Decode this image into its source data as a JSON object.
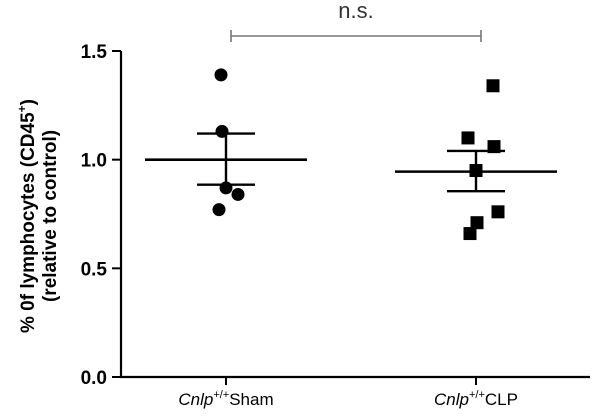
{
  "chart_data": {
    "type": "scatter",
    "ylabel_line1": "% 0f lymphocytes (CD45",
    "ylabel_sup": "+",
    "ylabel_line1_end": ")",
    "ylabel_line2": "(relative to control)",
    "ylim": [
      0,
      1.5
    ],
    "yticks": [
      "0.0",
      "0.5",
      "1.0",
      "1.5"
    ],
    "grid": false,
    "groups": [
      {
        "label_italic": "Cnlp",
        "label_sup": "+/+",
        "label_rest": "Sham",
        "marker": "circle",
        "values": [
          1.39,
          1.13,
          0.87,
          0.84,
          0.77
        ],
        "mean": 1.0,
        "sem_upper": 1.12,
        "sem_lower": 0.885
      },
      {
        "label_italic": "Cnlp",
        "label_sup": "+/+",
        "label_rest": "CLP",
        "marker": "square",
        "values": [
          1.34,
          1.1,
          1.06,
          0.95,
          0.76,
          0.71,
          0.66
        ],
        "mean": 0.945,
        "sem_upper": 1.04,
        "sem_lower": 0.855
      }
    ],
    "annotation": "n.s."
  }
}
